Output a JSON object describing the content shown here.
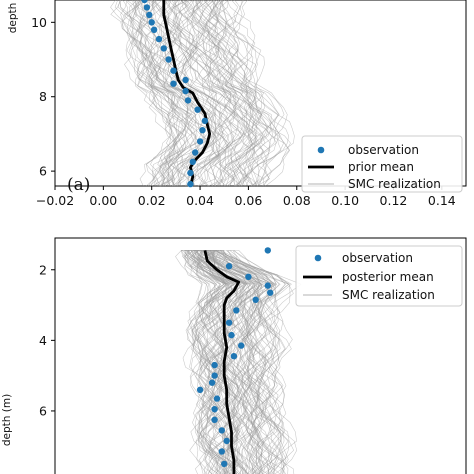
{
  "chart_data": [
    {
      "type": "line",
      "panel_label": "(a)",
      "ylabel": "depth",
      "xlabel": "",
      "xlim": [
        -0.02,
        0.15
      ],
      "ylim": [
        10.6,
        5.6
      ],
      "y_inverted": true,
      "xticks": [
        -0.02,
        0.0,
        0.02,
        0.04,
        0.06,
        0.08,
        0.1,
        0.12,
        0.14
      ],
      "xtick_labels": [
        "−0.02",
        "0.00",
        "0.02",
        "0.04",
        "0.06",
        "0.08",
        "0.10",
        "0.12",
        "0.14"
      ],
      "yticks": [
        6,
        8,
        10
      ],
      "ytick_labels": [
        "6",
        "8",
        "10"
      ],
      "legend": {
        "position": "lower-right",
        "entries": [
          "observation",
          "prior mean",
          "SMC realization"
        ]
      },
      "series": [
        {
          "name": "observation",
          "style": "markers",
          "color": "#1f77b4",
          "points": [
            [
              0.036,
              5.65
            ],
            [
              0.036,
              5.95
            ],
            [
              0.037,
              6.25
            ],
            [
              0.038,
              6.5
            ],
            [
              0.04,
              6.8
            ],
            [
              0.041,
              7.1
            ],
            [
              0.042,
              7.35
            ],
            [
              0.039,
              7.65
            ],
            [
              0.035,
              7.9
            ],
            [
              0.034,
              8.15
            ],
            [
              0.029,
              8.35
            ],
            [
              0.034,
              8.45
            ],
            [
              0.029,
              8.7
            ],
            [
              0.027,
              9.0
            ],
            [
              0.025,
              9.3
            ],
            [
              0.023,
              9.55
            ],
            [
              0.021,
              9.8
            ],
            [
              0.02,
              10.0
            ],
            [
              0.019,
              10.2
            ],
            [
              0.018,
              10.4
            ],
            [
              0.017,
              10.6
            ]
          ]
        },
        {
          "name": "prior mean",
          "style": "line",
          "color": "#000000",
          "points": [
            [
              0.036,
              5.6
            ],
            [
              0.037,
              5.85
            ],
            [
              0.036,
              6.1
            ],
            [
              0.038,
              6.3
            ],
            [
              0.041,
              6.5
            ],
            [
              0.043,
              6.75
            ],
            [
              0.044,
              7.0
            ],
            [
              0.043,
              7.25
            ],
            [
              0.042,
              7.55
            ],
            [
              0.039,
              7.85
            ],
            [
              0.037,
              8.1
            ],
            [
              0.033,
              8.25
            ],
            [
              0.031,
              8.45
            ],
            [
              0.03,
              8.7
            ],
            [
              0.029,
              9.0
            ],
            [
              0.028,
              9.3
            ],
            [
              0.027,
              9.6
            ],
            [
              0.026,
              9.9
            ],
            [
              0.025,
              10.2
            ],
            [
              0.025,
              10.6
            ]
          ]
        },
        {
          "name": "SMC realization",
          "style": "ensemble",
          "color": "#9a9a9a"
        }
      ]
    },
    {
      "type": "line",
      "panel_label": "",
      "ylabel": "depth (m)",
      "xlabel": "",
      "xlim": [
        -0.02,
        0.15
      ],
      "ylim": [
        1.1,
        7.9
      ],
      "y_inverted": true,
      "yticks": [
        2,
        4,
        6
      ],
      "ytick_labels": [
        "2",
        "4",
        "6"
      ],
      "legend": {
        "position": "upper-right",
        "entries": [
          "observation",
          "posterior mean",
          "SMC realization"
        ]
      },
      "series": [
        {
          "name": "observation",
          "style": "markers",
          "color": "#1f77b4",
          "points": [
            [
              0.068,
              1.45
            ],
            [
              0.052,
              1.9
            ],
            [
              0.06,
              2.2
            ],
            [
              0.068,
              2.45
            ],
            [
              0.069,
              2.65
            ],
            [
              0.063,
              2.85
            ],
            [
              0.055,
              3.15
            ],
            [
              0.052,
              3.5
            ],
            [
              0.053,
              3.85
            ],
            [
              0.057,
              4.15
            ],
            [
              0.054,
              4.45
            ],
            [
              0.046,
              4.7
            ],
            [
              0.046,
              5.0
            ],
            [
              0.045,
              5.2
            ],
            [
              0.04,
              5.4
            ],
            [
              0.047,
              5.65
            ],
            [
              0.046,
              5.95
            ],
            [
              0.046,
              6.25
            ],
            [
              0.049,
              6.55
            ],
            [
              0.051,
              6.85
            ],
            [
              0.049,
              7.15
            ],
            [
              0.05,
              7.5
            ]
          ]
        },
        {
          "name": "posterior mean",
          "style": "line",
          "color": "#000000",
          "points": [
            [
              0.042,
              1.45
            ],
            [
              0.043,
              1.75
            ],
            [
              0.047,
              2.0
            ],
            [
              0.051,
              2.2
            ],
            [
              0.056,
              2.35
            ],
            [
              0.054,
              2.6
            ],
            [
              0.051,
              2.8
            ],
            [
              0.05,
              3.0
            ],
            [
              0.05,
              3.4
            ],
            [
              0.05,
              3.8
            ],
            [
              0.051,
              4.2
            ],
            [
              0.05,
              4.6
            ],
            [
              0.05,
              5.0
            ],
            [
              0.051,
              5.4
            ],
            [
              0.051,
              5.8
            ],
            [
              0.052,
              6.2
            ],
            [
              0.053,
              6.6
            ],
            [
              0.053,
              7.0
            ],
            [
              0.054,
              7.4
            ],
            [
              0.054,
              7.9
            ]
          ]
        },
        {
          "name": "SMC realization",
          "style": "ensemble",
          "color": "#9a9a9a"
        }
      ]
    }
  ]
}
